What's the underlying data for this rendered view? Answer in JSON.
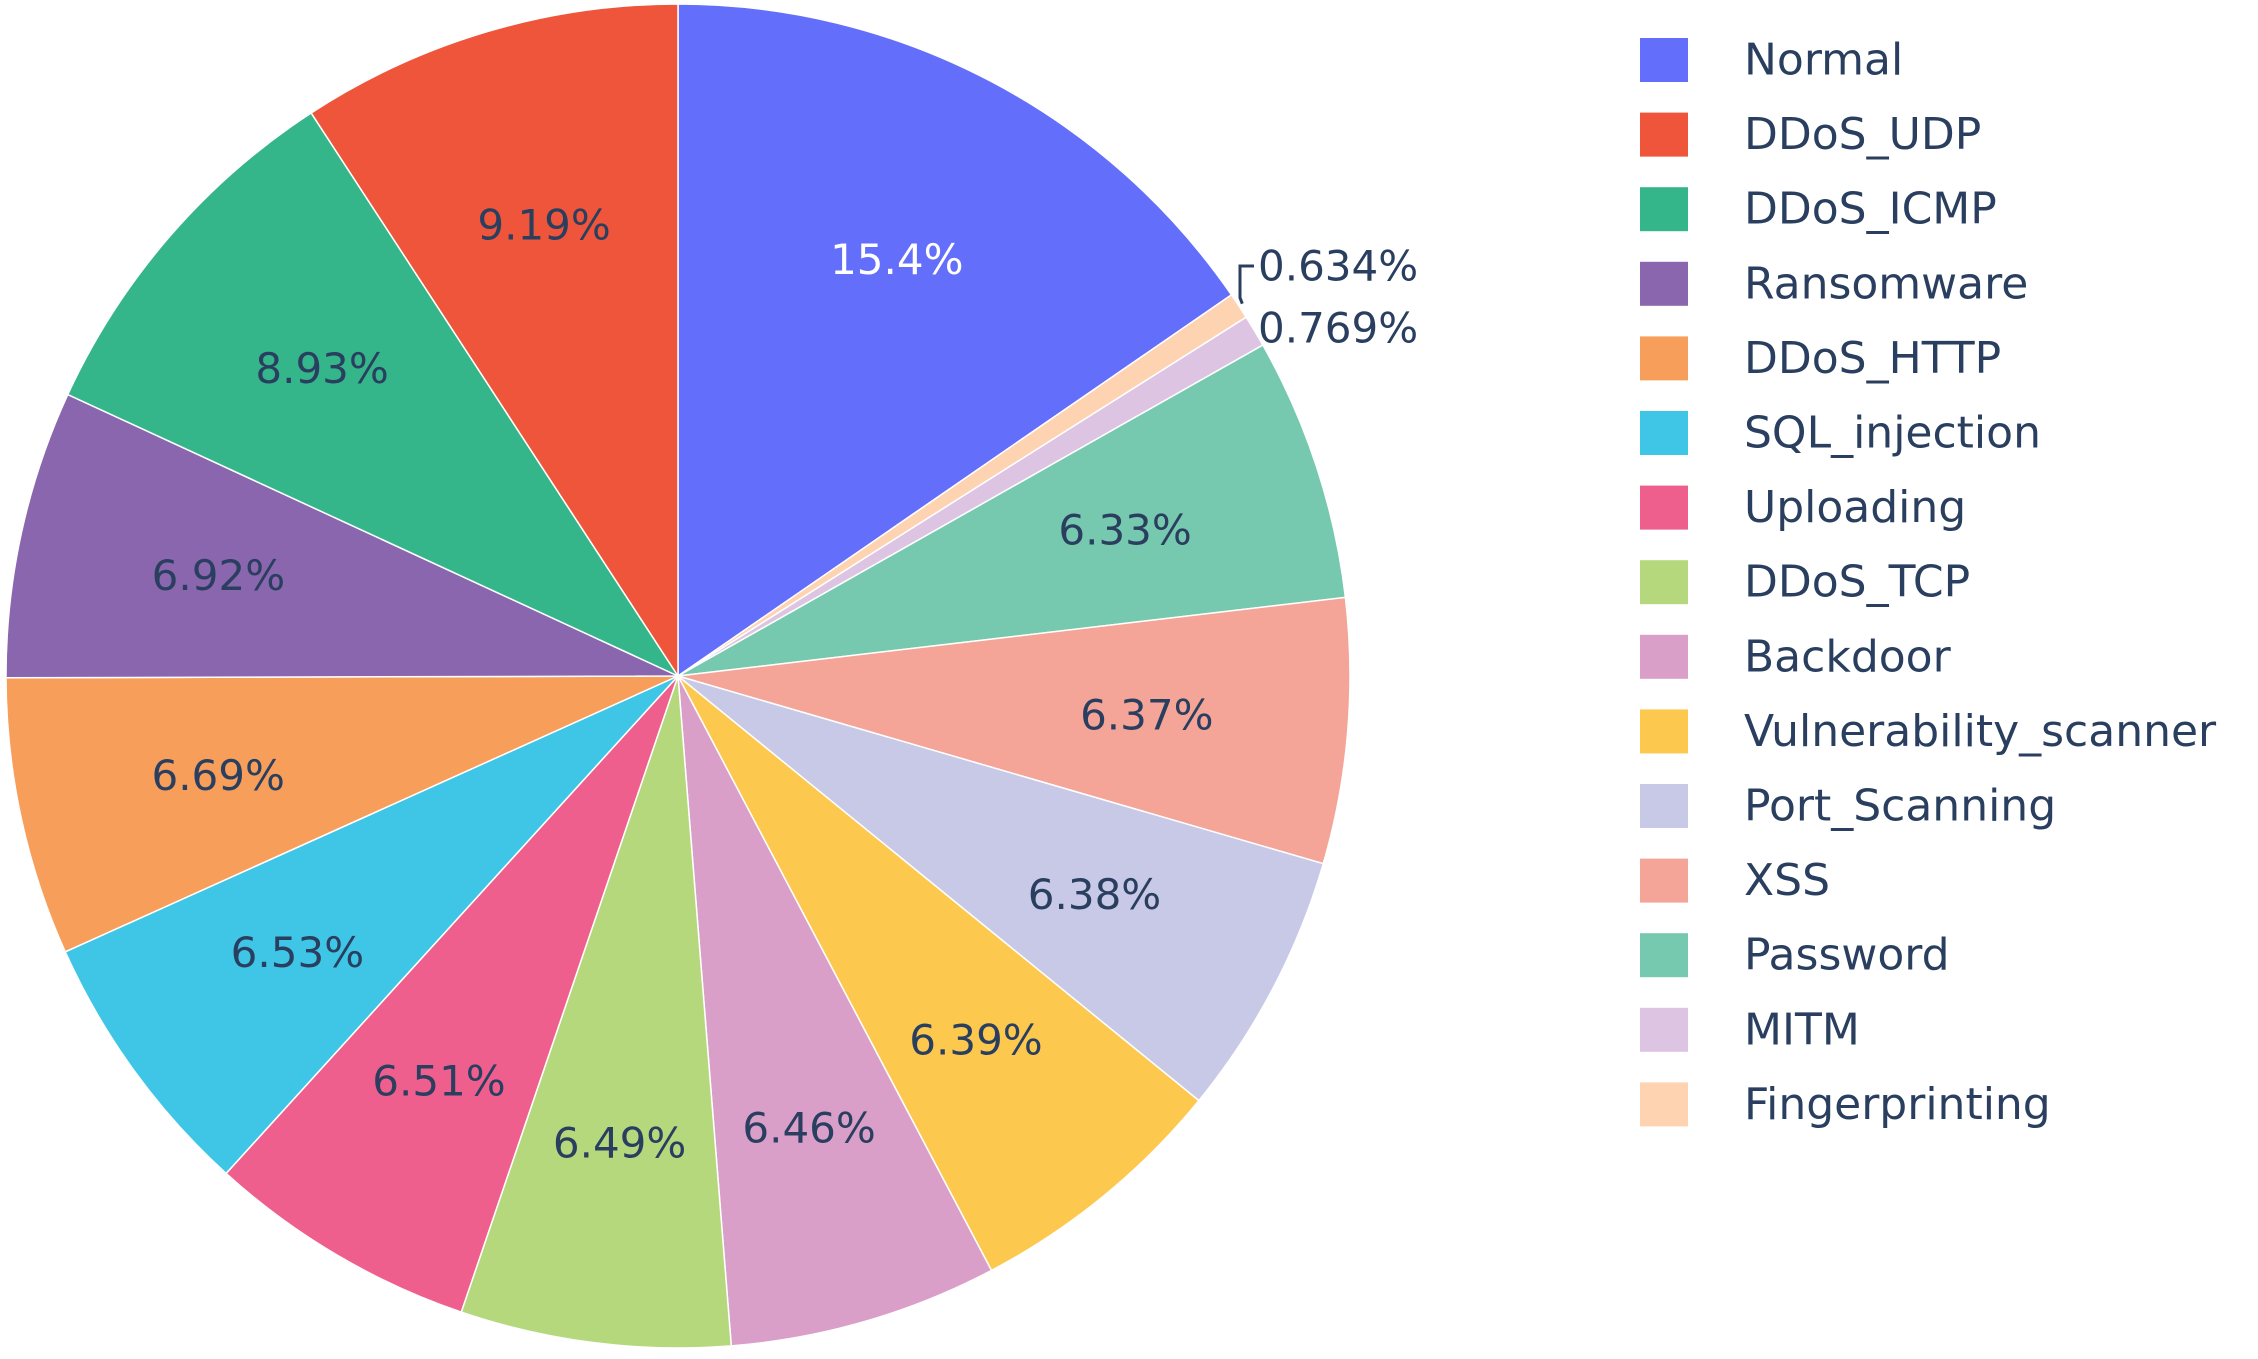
{
  "chart_data": {
    "type": "pie",
    "direction": "clockwise",
    "start": "12 o'clock",
    "legend_position": "right",
    "slices": [
      {
        "label": "Normal",
        "value": 15.4,
        "display": "15.4%",
        "color": "#636efa",
        "text_color": "#ffffff",
        "text_position": "inside"
      },
      {
        "label": "Fingerprinting",
        "value": 0.634,
        "display": "0.634%",
        "color": "#fed3b2",
        "text_color": "#2a3f5f",
        "text_position": "outside"
      },
      {
        "label": "MITM",
        "value": 0.769,
        "display": "0.769%",
        "color": "#dcc4e2",
        "text_color": "#2a3f5f",
        "text_position": "outside"
      },
      {
        "label": "Password",
        "value": 6.33,
        "display": "6.33%",
        "color": "#76c9ae",
        "text_color": "#2a3f5f",
        "text_position": "inside"
      },
      {
        "label": "XSS",
        "value": 6.37,
        "display": "6.37%",
        "color": "#f4a597",
        "text_color": "#2a3f5f",
        "text_position": "inside"
      },
      {
        "label": "Port_Scanning",
        "value": 6.38,
        "display": "6.38%",
        "color": "#c7c9e6",
        "text_color": "#2a3f5f",
        "text_position": "inside"
      },
      {
        "label": "Vulnerability_scanner",
        "value": 6.39,
        "display": "6.39%",
        "color": "#fcc84e",
        "text_color": "#2a3f5f",
        "text_position": "inside"
      },
      {
        "label": "Backdoor",
        "value": 6.46,
        "display": "6.46%",
        "color": "#d99fc9",
        "text_color": "#2a3f5f",
        "text_position": "inside"
      },
      {
        "label": "DDoS_TCP",
        "value": 6.49,
        "display": "6.49%",
        "color": "#b6d87d",
        "text_color": "#2a3f5f",
        "text_position": "inside"
      },
      {
        "label": "Uploading",
        "value": 6.51,
        "display": "6.51%",
        "color": "#ef5f8d",
        "text_color": "#2a3f5f",
        "text_position": "inside"
      },
      {
        "label": "SQL_injection",
        "value": 6.53,
        "display": "6.53%",
        "color": "#3fc6e6",
        "text_color": "#2a3f5f",
        "text_position": "inside"
      },
      {
        "label": "DDoS_HTTP",
        "value": 6.69,
        "display": "6.69%",
        "color": "#f79e5a",
        "text_color": "#2a3f5f",
        "text_position": "inside"
      },
      {
        "label": "Ransomware",
        "value": 6.92,
        "display": "6.92%",
        "color": "#8a66ae",
        "text_color": "#2a3f5f",
        "text_position": "inside"
      },
      {
        "label": "DDoS_ICMP",
        "value": 8.93,
        "display": "8.93%",
        "color": "#35b58a",
        "text_color": "#2a3f5f",
        "text_position": "inside"
      },
      {
        "label": "DDoS_UDP",
        "value": 9.19,
        "display": "9.19%",
        "color": "#ef553b",
        "text_color": "#2a3f5f",
        "text_position": "inside"
      }
    ],
    "legend_order": [
      "Normal",
      "DDoS_UDP",
      "DDoS_ICMP",
      "Ransomware",
      "DDoS_HTTP",
      "SQL_injection",
      "Uploading",
      "DDoS_TCP",
      "Backdoor",
      "Vulnerability_scanner",
      "Port_Scanning",
      "XSS",
      "Password",
      "MITM",
      "Fingerprinting"
    ]
  }
}
